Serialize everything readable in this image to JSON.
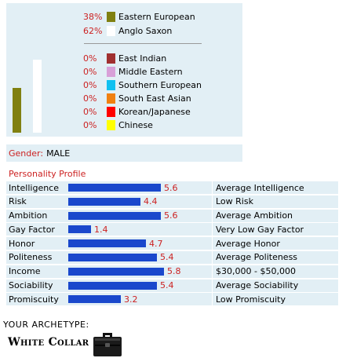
{
  "ethnicity": {
    "bars": [
      {
        "name": "Eastern European",
        "percent": 38,
        "color": "#808010"
      },
      {
        "name": "Anglo Saxon",
        "percent": 62,
        "color": "#ffffff"
      }
    ],
    "legend": [
      {
        "pct": "38%",
        "label": "Eastern European",
        "color": "#808010"
      },
      {
        "pct": "62%",
        "label": "Anglo Saxon",
        "color": "#ffffff"
      },
      {
        "pct": "0%",
        "label": "East Indian",
        "color": "#a03030"
      },
      {
        "pct": "0%",
        "label": "Middle Eastern",
        "color": "#d8a0d8"
      },
      {
        "pct": "0%",
        "label": "Southern European",
        "color": "#10c0f0"
      },
      {
        "pct": "0%",
        "label": "South East Asian",
        "color": "#f08010"
      },
      {
        "pct": "0%",
        "label": "Korean/Japanese",
        "color": "#ff0000"
      },
      {
        "pct": "0%",
        "label": "Chinese",
        "color": "#ffff00"
      }
    ]
  },
  "gender": {
    "label": "Gender:",
    "value": "MALE"
  },
  "profile": {
    "title": "Personality Profile",
    "max_value": 6.0,
    "rows": [
      {
        "label": "Intelligence",
        "value": 5.6,
        "value_text": "5.6",
        "description": "Average Intelligence"
      },
      {
        "label": "Risk",
        "value": 4.4,
        "value_text": "4.4",
        "description": "Low Risk"
      },
      {
        "label": "Ambition",
        "value": 5.6,
        "value_text": "5.6",
        "description": "Average Ambition"
      },
      {
        "label": "Gay Factor",
        "value": 1.4,
        "value_text": "1.4",
        "description": "Very Low Gay Factor"
      },
      {
        "label": "Honor",
        "value": 4.7,
        "value_text": "4.7",
        "description": "Average Honor"
      },
      {
        "label": "Politeness",
        "value": 5.4,
        "value_text": "5.4",
        "description": "Average Politeness"
      },
      {
        "label": "Income",
        "value": 5.8,
        "value_text": "5.8",
        "description": "$30,000 - $50,000"
      },
      {
        "label": "Sociability",
        "value": 5.4,
        "value_text": "5.4",
        "description": "Average Sociability"
      },
      {
        "label": "Promiscuity",
        "value": 3.2,
        "value_text": "3.2",
        "description": "Low Promiscuity"
      }
    ]
  },
  "archetype": {
    "heading": "YOUR ARCHETYPE:",
    "name": "White Collar",
    "icon": "briefcase-icon"
  }
}
